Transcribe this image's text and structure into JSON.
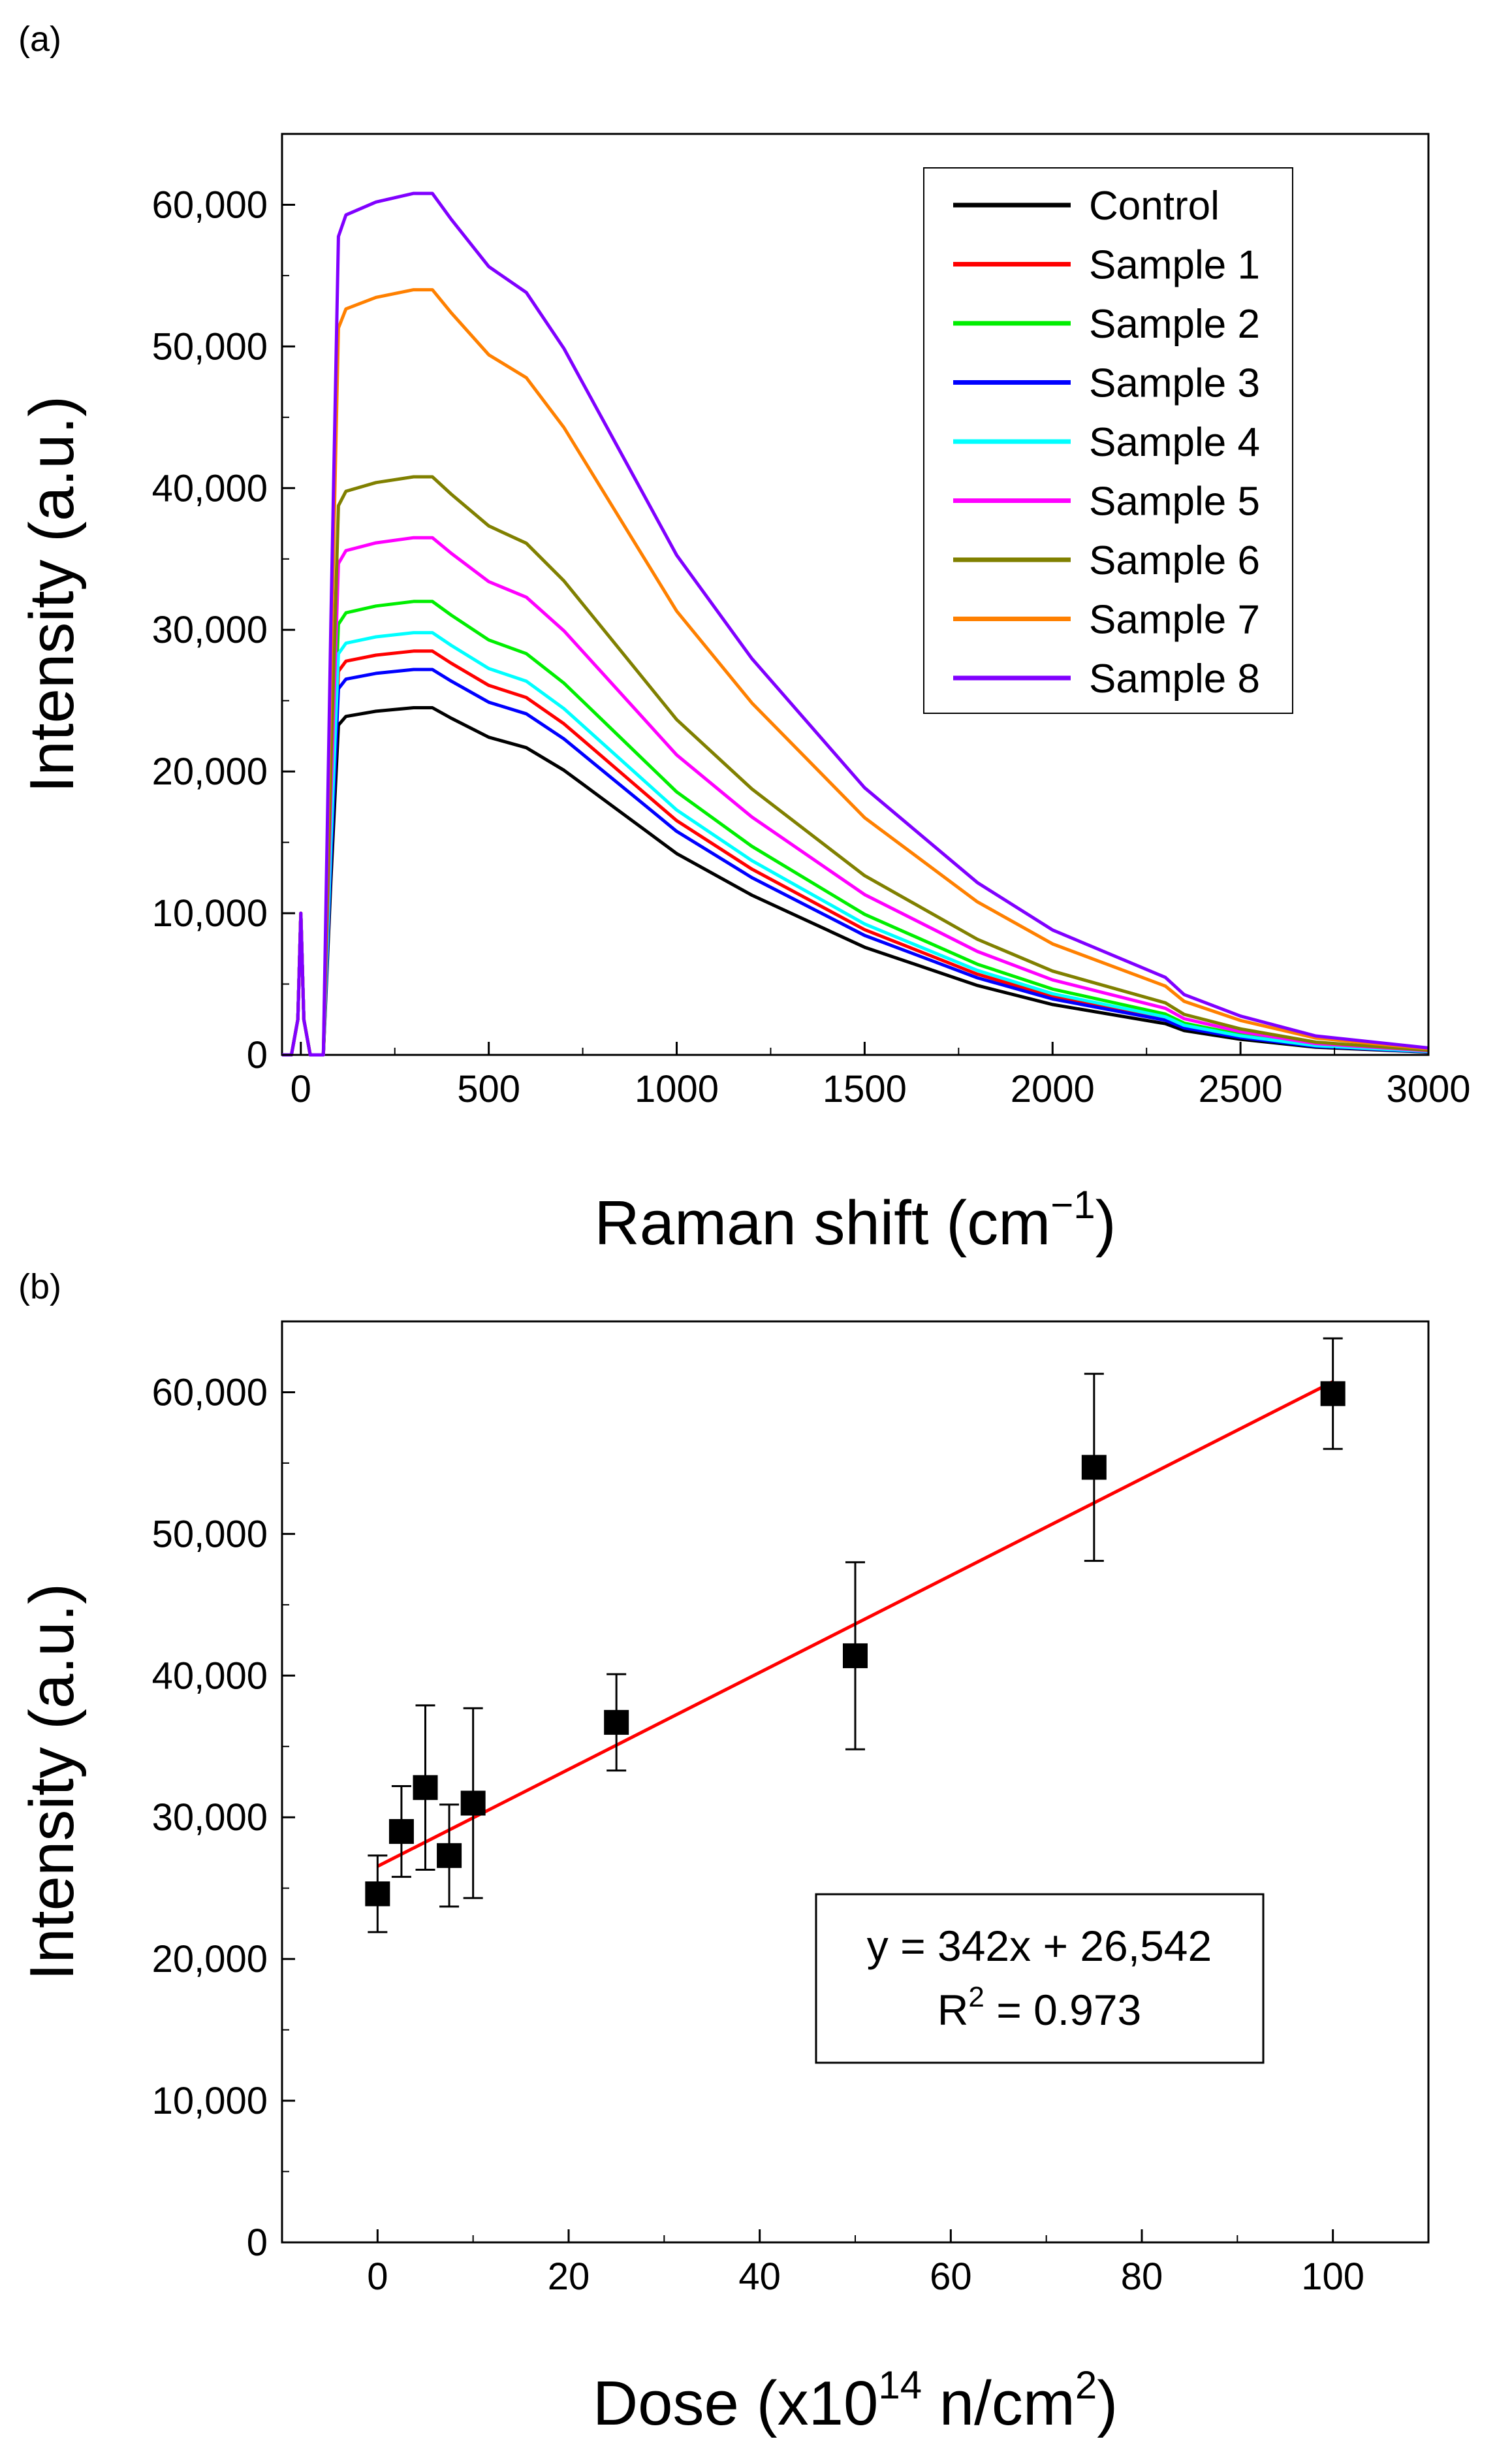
{
  "chart_data": [
    {
      "panel": "(a)",
      "type": "line",
      "xlabel": "Raman shift (cm",
      "xlabel_sup": "−1",
      "xlabel_end": ")",
      "ylabel": "Intensity (a.u.)",
      "xlim": [
        -50,
        3000
      ],
      "ylim": [
        0,
        65000
      ],
      "xticks": [
        0,
        500,
        1000,
        1500,
        2000,
        2500,
        3000
      ],
      "yticks": [
        0,
        10000,
        20000,
        30000,
        40000,
        50000,
        60000
      ],
      "ytick_labels": [
        "0",
        "10,000",
        "20,000",
        "30,000",
        "40,000",
        "50,000",
        "60,000"
      ],
      "legend_position": "top-right",
      "x": [
        -50,
        -25,
        -8,
        0,
        8,
        25,
        60,
        80,
        100,
        120,
        200,
        300,
        350,
        400,
        500,
        600,
        700,
        800,
        900,
        1000,
        1200,
        1500,
        1800,
        2000,
        2300,
        2350,
        2500,
        2700,
        3000
      ],
      "shape": [
        0,
        0,
        0.1,
        0.4,
        0.1,
        0,
        0,
        0.5,
        0.95,
        0.975,
        0.99,
        1.0,
        1.0,
        0.97,
        0.915,
        0.885,
        0.82,
        0.74,
        0.66,
        0.58,
        0.46,
        0.31,
        0.2,
        0.145,
        0.09,
        0.07,
        0.045,
        0.022,
        0.008
      ],
      "series": [
        {
          "name": "Control",
          "color": "#000000",
          "peak": 24500
        },
        {
          "name": "Sample 1",
          "color": "#ff0000",
          "peak": 28500
        },
        {
          "name": "Sample 2",
          "color": "#00ee00",
          "peak": 32000
        },
        {
          "name": "Sample 3",
          "color": "#0000ff",
          "peak": 27200
        },
        {
          "name": "Sample 4",
          "color": "#00ffff",
          "peak": 29800
        },
        {
          "name": "Sample 5",
          "color": "#ff00ff",
          "peak": 36500
        },
        {
          "name": "Sample 6",
          "color": "#808000",
          "peak": 40800
        },
        {
          "name": "Sample 7",
          "color": "#ff8000",
          "peak": 54000
        },
        {
          "name": "Sample 8",
          "color": "#8000ff",
          "peak": 60800
        }
      ]
    },
    {
      "panel": "(b)",
      "type": "scatter",
      "xlabel": "Dose (x10",
      "xlabel_sup1": "14",
      "xlabel_mid": " n/cm",
      "xlabel_sup2": "2",
      "xlabel_end": ")",
      "ylabel": "Intensity (a.u.)",
      "xlim": [
        -10,
        110
      ],
      "ylim": [
        0,
        65000
      ],
      "xticks": [
        0,
        20,
        40,
        60,
        80,
        100
      ],
      "yticks": [
        0,
        10000,
        20000,
        30000,
        40000,
        50000,
        60000
      ],
      "ytick_labels": [
        "0",
        "10,000",
        "20,000",
        "30,000",
        "40,000",
        "50,000",
        "60,000"
      ],
      "points": [
        {
          "x": 0,
          "y": 24600,
          "err": 2700
        },
        {
          "x": 2.5,
          "y": 29000,
          "err": 3200
        },
        {
          "x": 5,
          "y": 32100,
          "err": 5800
        },
        {
          "x": 7.5,
          "y": 27300,
          "err": 3600
        },
        {
          "x": 10,
          "y": 31000,
          "err": 6700
        },
        {
          "x": 25,
          "y": 36700,
          "err": 3400
        },
        {
          "x": 50,
          "y": 41400,
          "err": 6600
        },
        {
          "x": 75,
          "y": 54700,
          "err": 6600
        },
        {
          "x": 100,
          "y": 59900,
          "err": 3900
        }
      ],
      "fit": {
        "slope": 342,
        "intercept": 26542,
        "color": "#ff0000"
      },
      "equation": "y = 342x + 26,542",
      "r2_label": "R",
      "r2_sup": "2",
      "r2_value": " = 0.973"
    }
  ]
}
